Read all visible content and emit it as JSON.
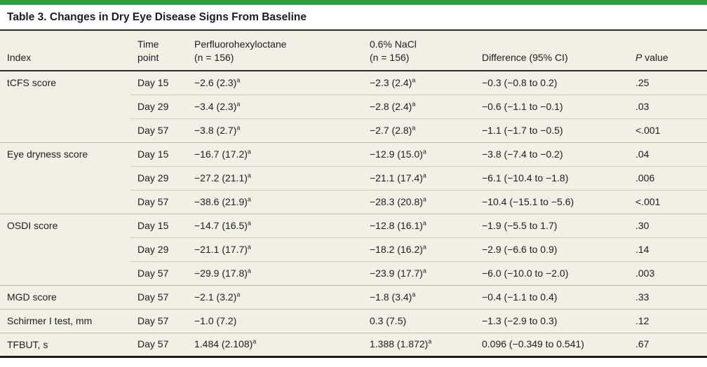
{
  "title": "Table 3. Changes in Dry Eye Disease Signs From Baseline",
  "colors": {
    "accent_green": "#2f9e43",
    "table_background": "#f2efe6",
    "rule_dark": "#2b2b2b",
    "row_divider": "#cdcac1",
    "group_divider": "#bdbab1",
    "text": "#1c1c1e"
  },
  "table": {
    "headers": [
      {
        "name": "index",
        "lines": [
          "Index"
        ]
      },
      {
        "name": "time-point",
        "lines": [
          "Time",
          "point"
        ]
      },
      {
        "name": "perfluorohexyloctane",
        "lines": [
          "Perfluorohexyloctane",
          "(n = 156)"
        ]
      },
      {
        "name": "nacl",
        "lines": [
          "0.6% NaCl",
          "(n = 156)"
        ]
      },
      {
        "name": "difference",
        "lines": [
          "Difference (95% CI)"
        ]
      },
      {
        "name": "p-value",
        "lines": [
          "P value"
        ],
        "italic_prefix_len": 1
      }
    ],
    "footnote_marker": "a",
    "groups": [
      {
        "index": "tCFS score",
        "rows": [
          {
            "time_point": "Day 15",
            "pfho": "−2.6 (2.3)",
            "pfho_sup": true,
            "nacl": "−2.3 (2.4)",
            "nacl_sup": true,
            "difference": "−0.3 (−0.8 to 0.2)",
            "p_value": ".25"
          },
          {
            "time_point": "Day 29",
            "pfho": "−3.4 (2.3)",
            "pfho_sup": true,
            "nacl": "−2.8 (2.4)",
            "nacl_sup": true,
            "difference": "−0.6 (−1.1 to −0.1)",
            "p_value": ".03"
          },
          {
            "time_point": "Day 57",
            "pfho": "−3.8 (2.7)",
            "pfho_sup": true,
            "nacl": "−2.7 (2.8)",
            "nacl_sup": true,
            "difference": "−1.1 (−1.7 to −0.5)",
            "p_value": "<.001"
          }
        ]
      },
      {
        "index": "Eye dryness score",
        "rows": [
          {
            "time_point": "Day 15",
            "pfho": "−16.7 (17.2)",
            "pfho_sup": true,
            "nacl": "−12.9 (15.0)",
            "nacl_sup": true,
            "difference": "−3.8 (−7.4 to −0.2)",
            "p_value": ".04"
          },
          {
            "time_point": "Day 29",
            "pfho": "−27.2 (21.1)",
            "pfho_sup": true,
            "nacl": "−21.1 (17.4)",
            "nacl_sup": true,
            "difference": "−6.1 (−10.4 to −1.8)",
            "p_value": ".006"
          },
          {
            "time_point": "Day 57",
            "pfho": "−38.6 (21.9)",
            "pfho_sup": true,
            "nacl": "−28.3 (20.8)",
            "nacl_sup": true,
            "difference": "−10.4 (−15.1 to −5.6)",
            "p_value": "<.001"
          }
        ]
      },
      {
        "index": "OSDI score",
        "rows": [
          {
            "time_point": "Day 15",
            "pfho": "−14.7 (16.5)",
            "pfho_sup": true,
            "nacl": "−12.8 (16.1)",
            "nacl_sup": true,
            "difference": "−1.9 (−5.5 to 1.7)",
            "p_value": ".30"
          },
          {
            "time_point": "Day 29",
            "pfho": "−21.1 (17.7)",
            "pfho_sup": true,
            "nacl": "−18.2 (16.2)",
            "nacl_sup": true,
            "difference": "−2.9 (−6.6 to 0.9)",
            "p_value": ".14"
          },
          {
            "time_point": "Day 57",
            "pfho": "−29.9 (17.8)",
            "pfho_sup": true,
            "nacl": "−23.9 (17.7)",
            "nacl_sup": true,
            "difference": "−6.0 (−10.0 to −2.0)",
            "p_value": ".003"
          }
        ]
      },
      {
        "index": "MGD score",
        "rows": [
          {
            "time_point": "Day 57",
            "pfho": "−2.1 (3.2)",
            "pfho_sup": true,
            "nacl": "−1.8 (3.4)",
            "nacl_sup": true,
            "difference": "−0.4 (−1.1 to 0.4)",
            "p_value": ".33"
          }
        ]
      },
      {
        "index": "Schirmer I test, mm",
        "rows": [
          {
            "time_point": "Day 57",
            "pfho": "−1.0 (7.2)",
            "pfho_sup": false,
            "nacl": "0.3 (7.5)",
            "nacl_sup": false,
            "difference": "−1.3 (−2.9 to 0.3)",
            "p_value": ".12"
          }
        ]
      },
      {
        "index": "TFBUT, s",
        "rows": [
          {
            "time_point": "Day 57",
            "pfho": "1.484 (2.108)",
            "pfho_sup": true,
            "nacl": "1.388 (1.872)",
            "nacl_sup": true,
            "difference": "0.096 (−0.349 to 0.541)",
            "p_value": ".67"
          }
        ]
      }
    ]
  }
}
